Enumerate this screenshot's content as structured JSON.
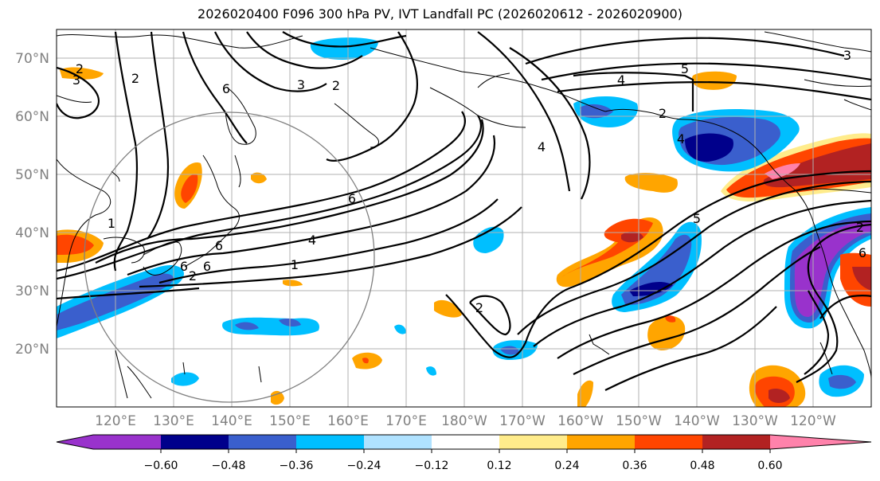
{
  "title": "2026020400 F096 300 hPa PV, IVT Landfall PC (2026020612 - 2026020900)",
  "lat_labels": [
    "70°N",
    "60°N",
    "50°N",
    "40°N",
    "30°N",
    "20°N"
  ],
  "lon_labels": [
    "120°E",
    "130°E",
    "140°E",
    "150°E",
    "160°E",
    "170°E",
    "180°W",
    "170°W",
    "160°W",
    "150°W",
    "140°W",
    "130°W",
    "120°W"
  ],
  "colorbar": {
    "colors": [
      "#9932cc",
      "#00008b",
      "#3a5fcd",
      "#00bfff",
      "#b0e2ff",
      "#ffffff",
      "#ffec8b",
      "#ffa500",
      "#ff4500",
      "#b22222",
      "#ff82ab"
    ],
    "tick_labels": [
      "−0.60",
      "−0.48",
      "−0.36",
      "−0.24",
      "−0.12",
      "0.12",
      "0.24",
      "0.36",
      "0.48",
      "0.60"
    ]
  },
  "contour_labels": [
    "2",
    "3",
    "2",
    "3",
    "2",
    "6",
    "3",
    "2",
    "6",
    "4",
    "5",
    "6",
    "4",
    "2",
    "6",
    "4",
    "1",
    "2",
    "4",
    "5",
    "6",
    "2",
    "6",
    "1"
  ]
}
